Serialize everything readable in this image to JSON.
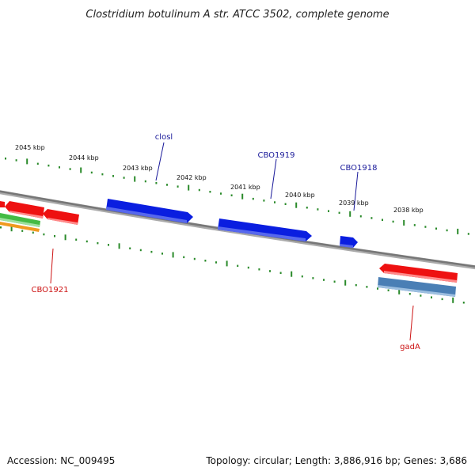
{
  "title": "Clostridium botulinum A str. ATCC 3502, complete genome",
  "footer": {
    "accession": "Accession: NC_009495",
    "summary": "Topology: circular; Length: 3,886,916 bp; Genes: 3,686"
  },
  "scale_ticks": [
    {
      "kbp": 2045,
      "label": "2045 kbp"
    },
    {
      "kbp": 2044,
      "label": "2044 kbp"
    },
    {
      "kbp": 2043,
      "label": "2043 kbp"
    },
    {
      "kbp": 2042,
      "label": "2042 kbp"
    },
    {
      "kbp": 2041,
      "label": "2041 kbp"
    },
    {
      "kbp": 2040,
      "label": "2040 kbp"
    },
    {
      "kbp": 2039,
      "label": "2039 kbp"
    },
    {
      "kbp": 2038,
      "label": "2038 kbp"
    }
  ],
  "gene_labels": [
    {
      "label": "closl",
      "strand": "outer"
    },
    {
      "label": "CBO1919",
      "strand": "outer"
    },
    {
      "label": "CBO1918",
      "strand": "outer"
    },
    {
      "label": "CBO1921",
      "strand": "inner"
    },
    {
      "label": "gadA",
      "strand": "inner"
    }
  ],
  "colors": {
    "backbone": "#808080",
    "tick": "#2a8a2a",
    "forward_gene": "#0a1ee0",
    "reverse_gene": "#ee1111",
    "alt_gene": "#4a7fb5",
    "green_gene": "#44bb44",
    "orange_gene": "#f09a20",
    "forward_label": "#1a1a9a",
    "reverse_label": "#cc1111"
  }
}
